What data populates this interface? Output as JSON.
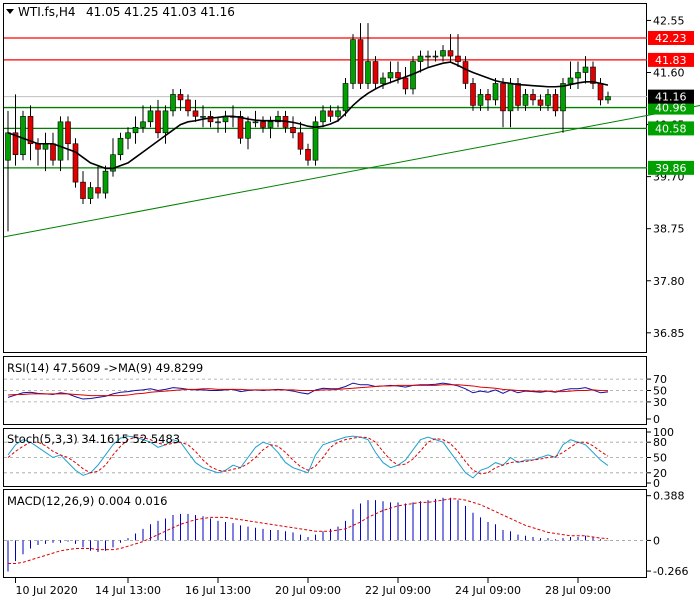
{
  "header": {
    "symbol": "WTI.fs,H4",
    "ohlc": "41.05 41.25 41.03 41.16"
  },
  "colors": {
    "background": "#ffffff",
    "frame": "#000000",
    "bull_candle": "#00a000",
    "bear_candle": "#e00000",
    "hline": "#ff0000",
    "support_line": "#008000",
    "ma_line": "#000000",
    "price_tag_bg": "#000000",
    "rsi_line": "#1010a0",
    "rsi_ma": "#e00000",
    "stoch_main": "#20a0d0",
    "stoch_signal": "#e00000",
    "macd_hist": "#0000c0",
    "macd_signal": "#e00000"
  },
  "chart_data": [
    {
      "type": "candlestick",
      "title": "WTI.fs,H4",
      "ylim": [
        36.5,
        42.85
      ],
      "yticks": [
        42.55,
        41.6,
        40.65,
        39.7,
        38.75,
        37.8,
        36.85
      ],
      "horizontal_levels": [
        {
          "value": 42.23,
          "label": "42.23",
          "color": "#ff0000",
          "fill": "#ff0000"
        },
        {
          "value": 41.83,
          "label": "41.83",
          "color": "#ff0000",
          "fill": "#ff0000"
        },
        {
          "value": 40.96,
          "label": "40.96",
          "color": "#008000",
          "fill": "#00a000"
        },
        {
          "value": 40.58,
          "label": "40.58",
          "color": "#008000",
          "fill": "#00a000"
        },
        {
          "value": 39.86,
          "label": "39.86",
          "color": "#008000",
          "fill": "#00a000"
        }
      ],
      "current_price": {
        "value": 41.16,
        "label": "41.16"
      },
      "trendline": {
        "start": [
          0,
          38.6
        ],
        "end": [
          109,
          41.43
        ]
      },
      "candles": [
        [
          40.0,
          40.9,
          38.7,
          40.5
        ],
        [
          40.5,
          41.2,
          39.9,
          40.1
        ],
        [
          40.1,
          40.9,
          40.0,
          40.8
        ],
        [
          40.8,
          41.0,
          40.0,
          40.3
        ],
        [
          40.3,
          40.4,
          39.9,
          40.2
        ],
        [
          40.2,
          40.5,
          39.8,
          40.3
        ],
        [
          40.3,
          40.5,
          39.9,
          40.0
        ],
        [
          40.0,
          40.8,
          39.8,
          40.7
        ],
        [
          40.7,
          40.8,
          40.0,
          40.3
        ],
        [
          40.3,
          40.4,
          39.5,
          39.6
        ],
        [
          39.6,
          39.8,
          39.2,
          39.3
        ],
        [
          39.3,
          39.6,
          39.2,
          39.5
        ],
        [
          39.5,
          39.9,
          39.3,
          39.4
        ],
        [
          39.4,
          39.9,
          39.3,
          39.8
        ],
        [
          39.8,
          40.4,
          39.7,
          40.1
        ],
        [
          40.1,
          40.5,
          40.0,
          40.4
        ],
        [
          40.4,
          40.6,
          40.2,
          40.5
        ],
        [
          40.5,
          40.8,
          40.3,
          40.6
        ],
        [
          40.6,
          41.0,
          40.5,
          40.7
        ],
        [
          40.7,
          41.0,
          40.6,
          40.9
        ],
        [
          40.9,
          41.1,
          40.4,
          40.5
        ],
        [
          40.5,
          41.0,
          40.3,
          40.9
        ],
        [
          40.9,
          41.3,
          40.8,
          41.2
        ],
        [
          41.2,
          41.3,
          40.9,
          41.1
        ],
        [
          41.1,
          41.2,
          40.8,
          40.9
        ],
        [
          40.9,
          41.1,
          40.7,
          40.8
        ],
        [
          40.8,
          41.0,
          40.6,
          40.8
        ],
        [
          40.8,
          40.9,
          40.6,
          40.7
        ],
        [
          40.7,
          40.8,
          40.5,
          40.7
        ],
        [
          40.7,
          40.9,
          40.5,
          40.8
        ],
        [
          40.8,
          41.0,
          40.6,
          40.8
        ],
        [
          40.8,
          40.9,
          40.3,
          40.4
        ],
        [
          40.4,
          40.8,
          40.2,
          40.7
        ],
        [
          40.7,
          40.9,
          40.6,
          40.7
        ],
        [
          40.7,
          40.8,
          40.5,
          40.6
        ],
        [
          40.6,
          40.8,
          40.4,
          40.7
        ],
        [
          40.7,
          40.9,
          40.6,
          40.8
        ],
        [
          40.8,
          40.9,
          40.5,
          40.6
        ],
        [
          40.6,
          40.8,
          40.4,
          40.5
        ],
        [
          40.5,
          40.7,
          40.1,
          40.2
        ],
        [
          40.2,
          40.3,
          39.9,
          40.0
        ],
        [
          40.0,
          40.8,
          39.9,
          40.7
        ],
        [
          40.7,
          41.0,
          40.6,
          40.9
        ],
        [
          40.9,
          41.0,
          40.7,
          40.8
        ],
        [
          40.8,
          41.0,
          40.7,
          40.9
        ],
        [
          40.9,
          41.5,
          40.8,
          41.4
        ],
        [
          41.4,
          42.3,
          41.3,
          42.2
        ],
        [
          42.2,
          42.5,
          41.3,
          41.4
        ],
        [
          41.4,
          42.5,
          41.3,
          41.8
        ],
        [
          41.8,
          41.9,
          41.3,
          41.4
        ],
        [
          41.4,
          41.6,
          41.3,
          41.5
        ],
        [
          41.5,
          41.8,
          41.4,
          41.6
        ],
        [
          41.6,
          41.8,
          41.4,
          41.5
        ],
        [
          41.5,
          41.7,
          41.2,
          41.3
        ],
        [
          41.3,
          41.9,
          41.2,
          41.8
        ],
        [
          41.8,
          42.0,
          41.6,
          41.9
        ],
        [
          41.9,
          42.0,
          41.7,
          41.9
        ],
        [
          41.9,
          42.0,
          41.8,
          41.9
        ],
        [
          41.9,
          42.1,
          41.8,
          42.0
        ],
        [
          42.0,
          42.3,
          41.8,
          41.9
        ],
        [
          41.9,
          42.3,
          41.7,
          41.8
        ],
        [
          41.8,
          41.9,
          41.3,
          41.4
        ],
        [
          41.4,
          41.5,
          40.9,
          41.0
        ],
        [
          41.0,
          41.3,
          40.9,
          41.2
        ],
        [
          41.2,
          41.3,
          40.9,
          41.1
        ],
        [
          41.1,
          41.5,
          41.0,
          41.4
        ],
        [
          41.4,
          41.5,
          40.6,
          40.9
        ],
        [
          40.9,
          41.5,
          40.6,
          41.4
        ],
        [
          41.4,
          41.5,
          40.9,
          41.0
        ],
        [
          41.0,
          41.3,
          40.9,
          41.2
        ],
        [
          41.2,
          41.3,
          41.0,
          41.1
        ],
        [
          41.1,
          41.2,
          40.9,
          41.0
        ],
        [
          41.0,
          41.3,
          40.9,
          41.2
        ],
        [
          41.2,
          41.3,
          40.8,
          40.9
        ],
        [
          40.9,
          41.5,
          40.5,
          41.4
        ],
        [
          41.4,
          41.8,
          41.3,
          41.5
        ],
        [
          41.5,
          41.8,
          41.3,
          41.6
        ],
        [
          41.6,
          41.9,
          41.4,
          41.7
        ],
        [
          41.7,
          41.8,
          41.3,
          41.4
        ],
        [
          41.4,
          41.5,
          41.0,
          41.1
        ],
        [
          41.1,
          41.25,
          41.03,
          41.16
        ]
      ],
      "sma": [
        40.5,
        40.45,
        40.4,
        40.35,
        40.3,
        40.3,
        40.3,
        40.25,
        40.2,
        40.15,
        40.05,
        39.95,
        39.9,
        39.85,
        39.85,
        39.9,
        39.95,
        40.05,
        40.15,
        40.25,
        40.35,
        40.45,
        40.55,
        40.65,
        40.7,
        40.72,
        40.75,
        40.77,
        40.78,
        40.8,
        40.8,
        40.78,
        40.75,
        40.73,
        40.72,
        40.72,
        40.72,
        40.71,
        40.69,
        40.66,
        40.62,
        40.6,
        40.62,
        40.66,
        40.72,
        40.85,
        41.0,
        41.12,
        41.22,
        41.3,
        41.37,
        41.42,
        41.47,
        41.52,
        41.57,
        41.63,
        41.69,
        41.73,
        41.77,
        41.79,
        41.73,
        41.66,
        41.6,
        41.55,
        41.5,
        41.45,
        41.42,
        41.4,
        41.38,
        41.37,
        41.36,
        41.35,
        41.34,
        41.34,
        41.35,
        41.38,
        41.41,
        41.43,
        41.43,
        41.4,
        41.37
      ],
      "xticks": [
        {
          "index": 1,
          "label": "10 Jul 2020"
        },
        {
          "index": 16,
          "label": "14 Jul 13:00"
        },
        {
          "index": 28,
          "label": "16 Jul 13:00"
        },
        {
          "index": 40,
          "label": "20 Jul 09:00"
        },
        {
          "index": 52,
          "label": "22 Jul 09:00"
        },
        {
          "index": 64,
          "label": "24 Jul 09:00"
        },
        {
          "index": 76,
          "label": "28 Jul 09:00"
        }
      ]
    },
    {
      "type": "line",
      "title": "RSI(14) 47.5609  ->MA(9) 49.8299",
      "ylim": [
        0,
        100
      ],
      "yticks": [
        70,
        50,
        30,
        0
      ],
      "levels": [
        70,
        50,
        30
      ],
      "series": [
        {
          "name": "RSI(14)",
          "values": [
            38,
            42,
            46,
            47,
            45,
            44,
            43,
            46,
            44,
            39,
            35,
            36,
            38,
            40,
            44,
            47,
            48,
            50,
            51,
            53,
            50,
            52,
            55,
            54,
            52,
            51,
            51,
            50,
            50,
            51,
            52,
            48,
            50,
            51,
            50,
            51,
            52,
            51,
            49,
            46,
            44,
            51,
            54,
            53,
            53,
            57,
            63,
            60,
            60,
            57,
            58,
            59,
            58,
            56,
            59,
            60,
            60,
            61,
            63,
            61,
            58,
            53,
            46,
            49,
            47,
            51,
            45,
            51,
            46,
            49,
            48,
            47,
            49,
            47,
            51,
            53,
            53,
            55,
            51,
            46,
            47.5609
          ]
        },
        {
          "name": "MA(9)",
          "values": [
            42,
            43,
            43,
            44,
            44,
            44,
            44,
            44,
            44,
            43,
            42,
            41,
            41,
            41,
            41,
            41,
            42,
            44,
            45,
            47,
            48,
            49,
            50,
            51,
            52,
            52,
            53,
            53,
            52,
            52,
            52,
            52,
            51,
            51,
            51,
            51,
            51,
            51,
            51,
            50,
            50,
            50,
            51,
            51,
            52,
            53,
            54,
            55,
            56,
            57,
            58,
            58,
            59,
            59,
            59,
            59,
            59,
            59,
            60,
            60,
            60,
            59,
            58,
            56,
            55,
            54,
            52,
            51,
            50,
            50,
            49,
            49,
            49,
            48,
            48,
            49,
            50,
            50,
            51,
            50,
            49.8299
          ]
        }
      ]
    },
    {
      "type": "line",
      "title": "Stoch(5,3,3) 34.1615 52.5483",
      "ylim": [
        0,
        100
      ],
      "yticks": [
        100,
        80,
        50,
        20,
        0
      ],
      "levels": [
        80,
        50,
        20
      ],
      "series": [
        {
          "name": "Main",
          "values": [
            55,
            75,
            85,
            80,
            70,
            60,
            50,
            55,
            40,
            25,
            15,
            20,
            35,
            55,
            75,
            88,
            92,
            90,
            85,
            80,
            70,
            75,
            85,
            80,
            60,
            40,
            30,
            25,
            20,
            25,
            35,
            30,
            50,
            70,
            80,
            75,
            60,
            40,
            30,
            25,
            20,
            55,
            75,
            80,
            85,
            90,
            92,
            90,
            85,
            60,
            40,
            30,
            35,
            45,
            65,
            85,
            90,
            85,
            80,
            60,
            40,
            20,
            10,
            25,
            30,
            40,
            35,
            50,
            40,
            45,
            45,
            50,
            55,
            50,
            75,
            85,
            80,
            75,
            60,
            45,
            34.1615
          ]
        },
        {
          "name": "Signal",
          "values": [
            50,
            62,
            72,
            80,
            80,
            73,
            62,
            55,
            50,
            40,
            28,
            20,
            23,
            35,
            55,
            72,
            85,
            90,
            89,
            85,
            78,
            75,
            78,
            80,
            75,
            62,
            45,
            32,
            25,
            23,
            27,
            30,
            38,
            50,
            65,
            75,
            72,
            60,
            45,
            32,
            25,
            33,
            50,
            70,
            80,
            85,
            88,
            90,
            89,
            80,
            62,
            45,
            35,
            37,
            47,
            63,
            80,
            87,
            85,
            77,
            62,
            42,
            25,
            18,
            20,
            30,
            35,
            40,
            42,
            42,
            45,
            47,
            50,
            52,
            60,
            70,
            80,
            80,
            73,
            62,
            52.5483
          ]
        }
      ]
    },
    {
      "type": "bar",
      "title": "MACD(12,26,9) 0.004 0.016",
      "ylim": [
        -0.3,
        0.42
      ],
      "yticks": [
        0.388,
        0.0,
        -0.266
      ],
      "series": [
        {
          "name": "MACD",
          "values": [
            -0.27,
            -0.18,
            -0.12,
            -0.07,
            -0.04,
            -0.03,
            -0.02,
            -0.02,
            -0.01,
            -0.03,
            -0.06,
            -0.09,
            -0.1,
            -0.09,
            -0.06,
            -0.02,
            0.02,
            0.06,
            0.1,
            0.14,
            0.17,
            0.19,
            0.22,
            0.23,
            0.23,
            0.22,
            0.21,
            0.19,
            0.17,
            0.16,
            0.15,
            0.13,
            0.12,
            0.11,
            0.1,
            0.09,
            0.09,
            0.08,
            0.07,
            0.05,
            0.03,
            0.05,
            0.08,
            0.1,
            0.12,
            0.17,
            0.27,
            0.32,
            0.35,
            0.35,
            0.34,
            0.33,
            0.33,
            0.32,
            0.33,
            0.34,
            0.35,
            0.36,
            0.37,
            0.37,
            0.35,
            0.3,
            0.24,
            0.2,
            0.16,
            0.14,
            0.09,
            0.08,
            0.05,
            0.04,
            0.03,
            0.02,
            0.02,
            0.01,
            0.02,
            0.03,
            0.03,
            0.04,
            0.03,
            0.01,
            0.004
          ]
        },
        {
          "name": "Signal",
          "values": [
            -0.2,
            -0.2,
            -0.19,
            -0.17,
            -0.15,
            -0.13,
            -0.11,
            -0.09,
            -0.08,
            -0.07,
            -0.07,
            -0.07,
            -0.08,
            -0.08,
            -0.08,
            -0.07,
            -0.05,
            -0.03,
            -0.01,
            0.02,
            0.05,
            0.08,
            0.11,
            0.14,
            0.16,
            0.18,
            0.19,
            0.2,
            0.2,
            0.2,
            0.19,
            0.18,
            0.17,
            0.16,
            0.15,
            0.14,
            0.13,
            0.12,
            0.11,
            0.1,
            0.09,
            0.08,
            0.08,
            0.08,
            0.09,
            0.1,
            0.13,
            0.16,
            0.2,
            0.23,
            0.26,
            0.28,
            0.3,
            0.31,
            0.32,
            0.33,
            0.33,
            0.34,
            0.35,
            0.36,
            0.36,
            0.35,
            0.33,
            0.31,
            0.28,
            0.25,
            0.22,
            0.19,
            0.16,
            0.13,
            0.11,
            0.09,
            0.07,
            0.06,
            0.05,
            0.04,
            0.04,
            0.04,
            0.03,
            0.02,
            0.016
          ]
        }
      ]
    }
  ]
}
